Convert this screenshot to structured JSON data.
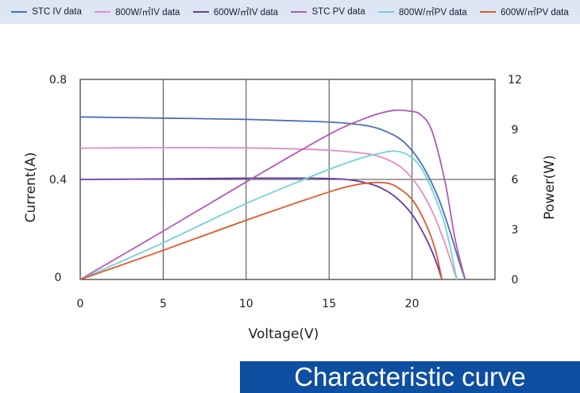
{
  "chart_data": {
    "type": "line",
    "xlabel": "Voltage(V)",
    "ylabel": "Current(A)",
    "y2label": "Power(W)",
    "xlim": [
      0,
      25
    ],
    "ylim": [
      0,
      0.8
    ],
    "y2lim": [
      0,
      12
    ],
    "x_ticks": [
      "0",
      "5",
      "10",
      "15",
      "20"
    ],
    "y_ticks": [
      "0",
      "0.4",
      "0.8"
    ],
    "y2_ticks": [
      "0",
      "3",
      "6",
      "9",
      "12"
    ],
    "grid": true,
    "legend_position": "top",
    "series": [
      {
        "name": "STC IV data",
        "axis": "left",
        "color": "#4a6fb5",
        "x": [
          0,
          5,
          10,
          14,
          16,
          17.5,
          18.5,
          19.5,
          20.5,
          21.5,
          22.2,
          22.8,
          23.2
        ],
        "y": [
          0.65,
          0.645,
          0.64,
          0.632,
          0.625,
          0.612,
          0.59,
          0.55,
          0.47,
          0.34,
          0.21,
          0.08,
          0
        ]
      },
      {
        "name": "800W/㎡IV data",
        "axis": "left",
        "color": "#e08fc2",
        "x": [
          0,
          5,
          10,
          14,
          16,
          17.5,
          18.5,
          19.5,
          20.5,
          21.3,
          21.9,
          22.4,
          22.7
        ],
        "y": [
          0.525,
          0.527,
          0.526,
          0.52,
          0.512,
          0.5,
          0.48,
          0.44,
          0.36,
          0.26,
          0.16,
          0.06,
          0
        ]
      },
      {
        "name": "600W/㎡IV data",
        "axis": "left",
        "color": "#6a3aa6",
        "x": [
          0,
          5,
          10,
          14,
          16,
          17,
          18,
          19,
          20,
          20.8,
          21.4,
          21.8
        ],
        "y": [
          0.4,
          0.402,
          0.405,
          0.405,
          0.4,
          0.39,
          0.37,
          0.33,
          0.26,
          0.17,
          0.08,
          0
        ]
      },
      {
        "name": "STC PV data",
        "axis": "right",
        "color": "#b05ab5",
        "x": [
          0,
          5,
          10,
          15,
          17,
          18,
          19,
          19.8,
          20.5,
          21.2,
          22,
          22.6,
          23.2
        ],
        "y": [
          0,
          2.9,
          5.85,
          8.7,
          9.6,
          9.95,
          10.15,
          10.1,
          9.9,
          8.9,
          5.8,
          2.4,
          0
        ]
      },
      {
        "name": "800W/㎡PV data",
        "axis": "right",
        "color": "#6fd2dc",
        "x": [
          0,
          5,
          10,
          15,
          17,
          18,
          18.8,
          19.6,
          20.4,
          21.2,
          22,
          22.7
        ],
        "y": [
          0,
          2.2,
          4.55,
          6.6,
          7.3,
          7.55,
          7.7,
          7.55,
          6.9,
          5.4,
          3.2,
          0
        ]
      },
      {
        "name": "600W/㎡PV data",
        "axis": "right",
        "color": "#e0582a",
        "x": [
          0,
          5,
          10,
          15,
          16.5,
          17.5,
          18.3,
          19,
          20,
          20.8,
          21.4,
          21.8
        ],
        "y": [
          0,
          1.75,
          3.55,
          5.25,
          5.65,
          5.8,
          5.8,
          5.6,
          4.8,
          3.4,
          1.8,
          0
        ]
      }
    ]
  },
  "banner": {
    "text": "Characteristic curve"
  }
}
